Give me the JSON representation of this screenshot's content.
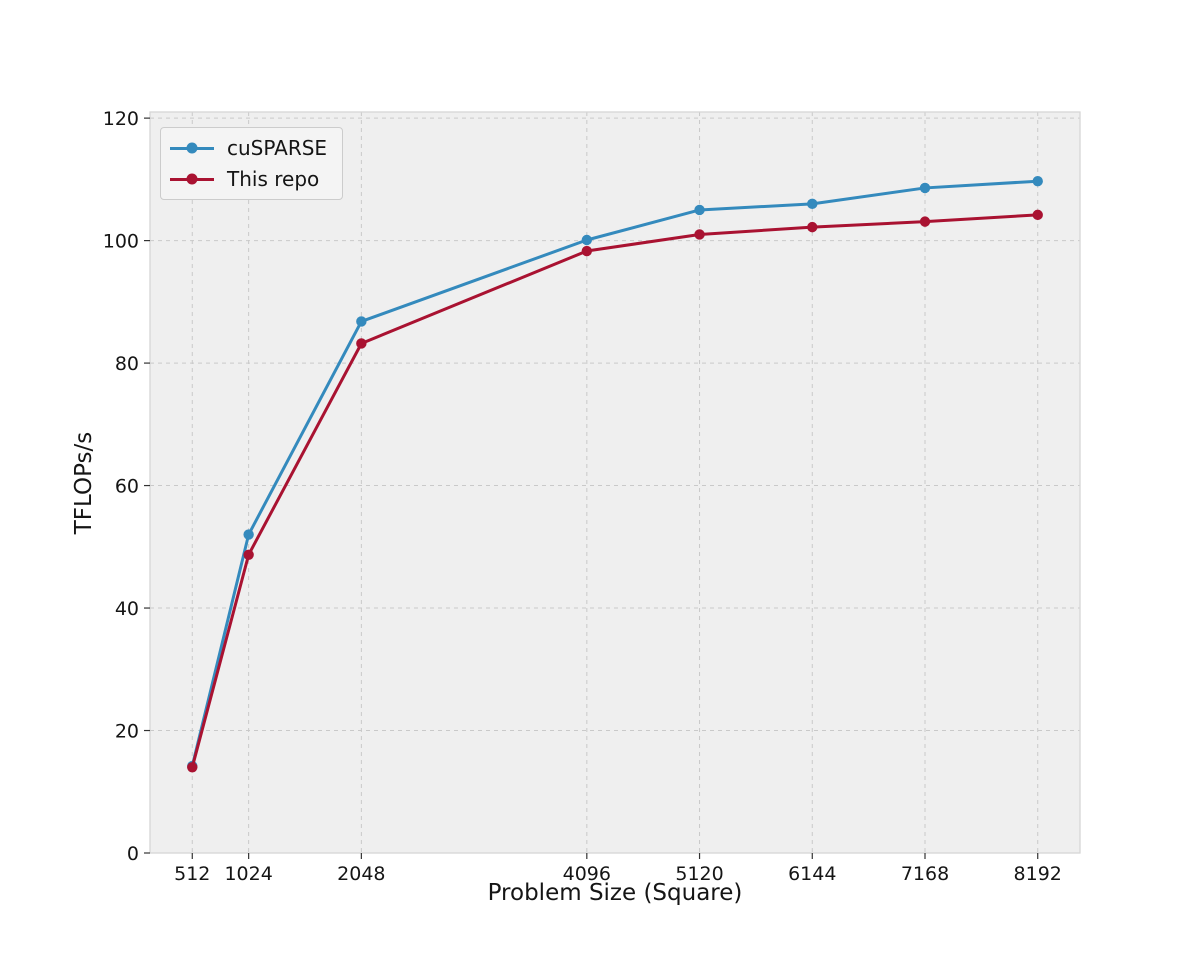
{
  "chart_data": {
    "type": "line",
    "xlabel": "Problem Size (Square)",
    "ylabel": "TFLOPs/s",
    "x": [
      512,
      1024,
      2048,
      4096,
      5120,
      6144,
      7168,
      8192
    ],
    "xticks": [
      512,
      1024,
      2048,
      4096,
      5120,
      6144,
      7168,
      8192
    ],
    "yticks": [
      0,
      20,
      40,
      60,
      80,
      100,
      120
    ],
    "xlim": [
      128,
      8576
    ],
    "ylim": [
      0,
      121
    ],
    "grid": true,
    "grid_style": "dashed",
    "legend_position": "upper-left",
    "marker": "circle",
    "line_width": 3,
    "series": [
      {
        "name": "cuSPARSE",
        "color": "#348abd",
        "values": [
          14.2,
          52.0,
          86.8,
          100.1,
          105.0,
          106.0,
          108.6,
          109.7
        ]
      },
      {
        "name": "This repo",
        "color": "#a91231",
        "values": [
          14.0,
          48.7,
          83.2,
          98.3,
          101.0,
          102.2,
          103.1,
          104.2
        ]
      }
    ],
    "colors": {
      "figure_background": "#ffffff",
      "plot_background": "#efefef",
      "grid": "#c9c9c9",
      "spine": "#d6d6d6",
      "tick": "#333333",
      "text": "#151515",
      "legend_background": "#f4f4f4",
      "legend_border": "#cccccc"
    }
  }
}
